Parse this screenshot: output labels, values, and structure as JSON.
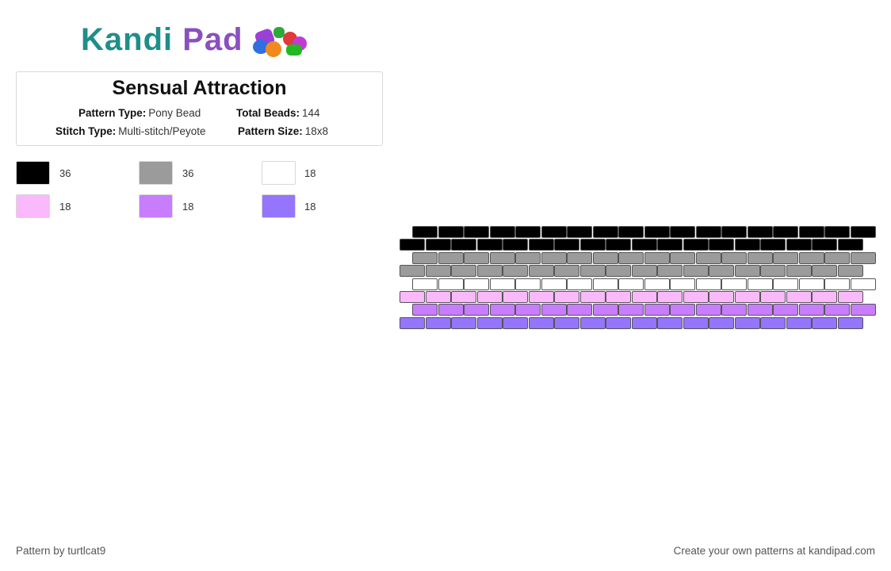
{
  "logo": {
    "part1": "Kandi",
    "part2": "Pad"
  },
  "pattern": {
    "title": "Sensual Attraction",
    "pattern_type_label": "Pattern Type:",
    "pattern_type_value": "Pony Bead",
    "total_beads_label": "Total Beads:",
    "total_beads_value": "144",
    "stitch_type_label": "Stitch Type:",
    "stitch_type_value": "Multi-stitch/Peyote",
    "pattern_size_label": "Pattern Size:",
    "pattern_size_value": "18x8"
  },
  "colors": [
    {
      "hex": "#000000",
      "count": "36"
    },
    {
      "hex": "#9b9b9b",
      "count": "36"
    },
    {
      "hex": "#ffffff",
      "count": "18"
    },
    {
      "hex": "#f9b9fb",
      "count": "18"
    },
    {
      "hex": "#c77dfc",
      "count": "18"
    },
    {
      "hex": "#9575fc",
      "count": "18"
    }
  ],
  "bead_rows": [
    0,
    0,
    1,
    1,
    2,
    3,
    4,
    5
  ],
  "beads_per_row": 18,
  "footer": {
    "credit": "Pattern by turtlcat9",
    "promo": "Create your own patterns at kandipad.com"
  }
}
